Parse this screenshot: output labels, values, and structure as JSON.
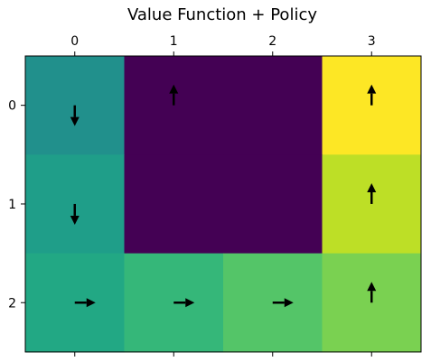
{
  "chart_data": {
    "type": "heatmap",
    "title": "Value Function + Policy",
    "x_ticks": [
      "0",
      "1",
      "2",
      "3"
    ],
    "y_ticks": [
      "0",
      "1",
      "2"
    ],
    "x_axis_position": "top",
    "colormap": "viridis",
    "value_range": [
      0,
      1
    ],
    "values": [
      [
        0.5,
        0.0,
        0.0,
        1.0
      ],
      [
        0.55,
        0.0,
        0.0,
        0.85
      ],
      [
        0.6,
        0.67,
        0.74,
        0.8
      ]
    ],
    "policy": [
      [
        "down",
        "up",
        null,
        "up"
      ],
      [
        "down",
        null,
        null,
        "up"
      ],
      [
        "right",
        "right",
        "right",
        "up"
      ]
    ],
    "cell_colors": [
      [
        "#21908c",
        "#440154",
        "#440154",
        "#fde725"
      ],
      [
        "#1f9e89",
        "#440154",
        "#440154",
        "#bddf26"
      ],
      [
        "#22a884",
        "#35b779",
        "#54c568",
        "#7ad151"
      ]
    ],
    "arrow_color": "#000000",
    "grid": false
  }
}
